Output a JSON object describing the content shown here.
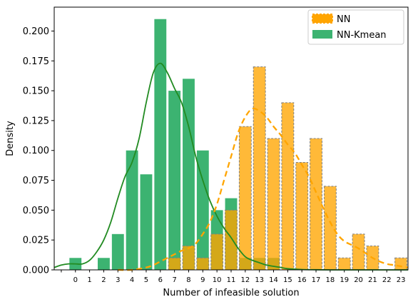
{
  "chart_data": {
    "type": "bar",
    "title": "",
    "xlabel": "Number of infeasible solution",
    "ylabel": "Density",
    "xlim": [
      -1.5,
      23.5
    ],
    "ylim": [
      0,
      0.22
    ],
    "x_tick_labels": [
      "0",
      "1",
      "2",
      "3",
      "4",
      "5",
      "6",
      "7",
      "8",
      "9",
      "10",
      "11",
      "12",
      "13",
      "14",
      "15",
      "16",
      "17",
      "18",
      "19",
      "20",
      "21",
      "22",
      "23"
    ],
    "y_ticks": [
      0.0,
      0.025,
      0.05,
      0.075,
      0.1,
      0.125,
      0.15,
      0.175,
      0.2
    ],
    "y_tick_labels": [
      "0.000",
      "0.025",
      "0.050",
      "0.075",
      "0.100",
      "0.125",
      "0.150",
      "0.175",
      "0.200"
    ],
    "legend_position": "top-right",
    "series": [
      {
        "name": "NN-Kmean",
        "color": "#3cb371",
        "kde_color": "#228b22",
        "bars": [
          {
            "x": 0,
            "value": 0.01
          },
          {
            "x": 2,
            "value": 0.01
          },
          {
            "x": 3,
            "value": 0.03
          },
          {
            "x": 4,
            "value": 0.1
          },
          {
            "x": 5,
            "value": 0.08
          },
          {
            "x": 6,
            "value": 0.21
          },
          {
            "x": 7,
            "value": 0.15
          },
          {
            "x": 8,
            "value": 0.16
          },
          {
            "x": 9,
            "value": 0.1
          },
          {
            "x": 10,
            "value": 0.05
          },
          {
            "x": 11,
            "value": 0.06
          },
          {
            "x": 12,
            "value": 0.01
          },
          {
            "x": 13,
            "value": 0.01
          },
          {
            "x": 14,
            "value": 0.01
          }
        ],
        "kde": [
          [
            -1.5,
            0.002
          ],
          [
            -1.0,
            0.004
          ],
          [
            -0.5,
            0.005
          ],
          [
            0.0,
            0.005
          ],
          [
            0.5,
            0.005
          ],
          [
            1.0,
            0.008
          ],
          [
            1.5,
            0.015
          ],
          [
            2.0,
            0.025
          ],
          [
            2.5,
            0.04
          ],
          [
            3.0,
            0.06
          ],
          [
            3.5,
            0.078
          ],
          [
            4.0,
            0.09
          ],
          [
            4.5,
            0.11
          ],
          [
            5.0,
            0.14
          ],
          [
            5.5,
            0.165
          ],
          [
            6.0,
            0.173
          ],
          [
            6.5,
            0.165
          ],
          [
            7.0,
            0.152
          ],
          [
            7.5,
            0.14
          ],
          [
            8.0,
            0.12
          ],
          [
            8.5,
            0.095
          ],
          [
            9.0,
            0.075
          ],
          [
            9.5,
            0.058
          ],
          [
            10.0,
            0.045
          ],
          [
            10.5,
            0.035
          ],
          [
            11.0,
            0.027
          ],
          [
            11.5,
            0.018
          ],
          [
            12.0,
            0.011
          ],
          [
            12.5,
            0.008
          ],
          [
            13.0,
            0.006
          ],
          [
            13.5,
            0.004
          ],
          [
            14.0,
            0.003
          ],
          [
            14.5,
            0.002
          ],
          [
            15.0,
            0.001
          ],
          [
            16.0,
            0.0003
          ],
          [
            17.0,
            0.0001
          ],
          [
            18.0,
            0.0
          ],
          [
            19.0,
            0.0
          ],
          [
            20.0,
            0.0
          ],
          [
            21.0,
            0.0
          ],
          [
            22.0,
            0.0
          ],
          [
            23.0,
            0.0
          ],
          [
            23.5,
            0.0
          ]
        ]
      },
      {
        "name": "NN",
        "color": "#ffa500",
        "edge_color": "#808080",
        "kde_color": "#ffa500",
        "bars": [
          {
            "x": 7,
            "value": 0.01
          },
          {
            "x": 8,
            "value": 0.02
          },
          {
            "x": 9,
            "value": 0.01
          },
          {
            "x": 10,
            "value": 0.03
          },
          {
            "x": 11,
            "value": 0.05
          },
          {
            "x": 12,
            "value": 0.12
          },
          {
            "x": 13,
            "value": 0.17
          },
          {
            "x": 14,
            "value": 0.11
          },
          {
            "x": 15,
            "value": 0.14
          },
          {
            "x": 16,
            "value": 0.09
          },
          {
            "x": 17,
            "value": 0.11
          },
          {
            "x": 18,
            "value": 0.07
          },
          {
            "x": 19,
            "value": 0.01
          },
          {
            "x": 20,
            "value": 0.03
          },
          {
            "x": 21,
            "value": 0.02
          },
          {
            "x": 23,
            "value": 0.01
          }
        ],
        "kde": [
          [
            3.0,
            0.0
          ],
          [
            4.0,
            0.0
          ],
          [
            5.0,
            0.002
          ],
          [
            5.5,
            0.004
          ],
          [
            6.0,
            0.007
          ],
          [
            6.5,
            0.01
          ],
          [
            7.0,
            0.013
          ],
          [
            7.5,
            0.016
          ],
          [
            8.0,
            0.018
          ],
          [
            8.5,
            0.022
          ],
          [
            9.0,
            0.03
          ],
          [
            9.5,
            0.04
          ],
          [
            10.0,
            0.055
          ],
          [
            10.5,
            0.075
          ],
          [
            11.0,
            0.095
          ],
          [
            11.5,
            0.115
          ],
          [
            12.0,
            0.128
          ],
          [
            12.5,
            0.135
          ],
          [
            13.0,
            0.133
          ],
          [
            13.5,
            0.128
          ],
          [
            14.0,
            0.12
          ],
          [
            14.5,
            0.113
          ],
          [
            15.0,
            0.105
          ],
          [
            15.5,
            0.098
          ],
          [
            16.0,
            0.088
          ],
          [
            16.5,
            0.078
          ],
          [
            17.0,
            0.065
          ],
          [
            17.5,
            0.052
          ],
          [
            18.0,
            0.04
          ],
          [
            18.5,
            0.03
          ],
          [
            19.0,
            0.024
          ],
          [
            19.5,
            0.021
          ],
          [
            20.0,
            0.018
          ],
          [
            20.5,
            0.014
          ],
          [
            21.0,
            0.01
          ],
          [
            21.5,
            0.007
          ],
          [
            22.0,
            0.005
          ],
          [
            22.5,
            0.004
          ],
          [
            23.0,
            0.003
          ],
          [
            23.5,
            0.002
          ]
        ]
      }
    ]
  }
}
